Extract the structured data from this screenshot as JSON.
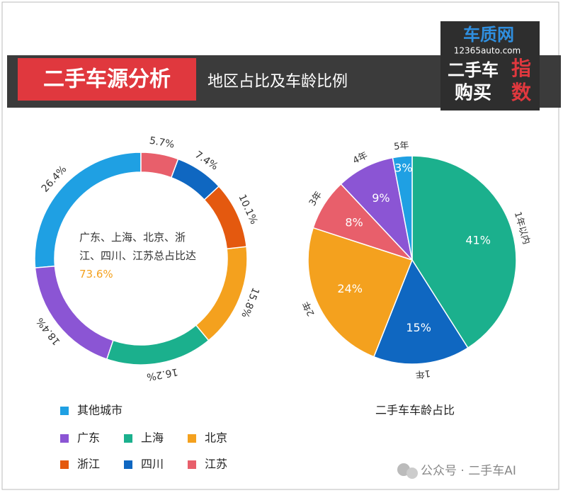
{
  "header": {
    "title": "二手车源分析",
    "subtitle": "地区占比及车龄比例",
    "logo_name": "车质网",
    "logo_url": "12365auto.com",
    "logo_line1": "二手车",
    "logo_line2": "购买",
    "logo_accent1": "指",
    "logo_accent2": "数"
  },
  "watermark": "公众号 · 二手车AI",
  "chart_data": [
    {
      "type": "donut",
      "categories": [
        "其他城市",
        "广东",
        "上海",
        "北京",
        "浙江",
        "四川",
        "江苏"
      ],
      "values": [
        26.4,
        18.4,
        16.2,
        15.8,
        10.1,
        7.4,
        5.7
      ],
      "value_labels": [
        "26.4%",
        "18.4%",
        "16.2%",
        "15.8%",
        "10.1%",
        "7.4%",
        "5.7%"
      ],
      "colors": [
        "#1fa0e3",
        "#8b55d4",
        "#1bb08d",
        "#f4a11e",
        "#e4590f",
        "#0f67c1",
        "#e85f6b"
      ],
      "annotation": {
        "text": "广东、上海、北京、浙江、四川、江苏总占比达",
        "highlight": "73.6%"
      }
    },
    {
      "type": "pie",
      "title": "二手车车龄占比",
      "categories": [
        "1年以内",
        "1年",
        "2年",
        "3年",
        "4年",
        "5年"
      ],
      "values": [
        41,
        15,
        24,
        8,
        9,
        3
      ],
      "value_labels": [
        "41%",
        "15%",
        "24%",
        "8%",
        "9%",
        "3%"
      ],
      "colors": [
        "#1bb08d",
        "#0f67c1",
        "#f4a11e",
        "#e85f6b",
        "#8b55d4",
        "#1fa0e3"
      ]
    }
  ]
}
